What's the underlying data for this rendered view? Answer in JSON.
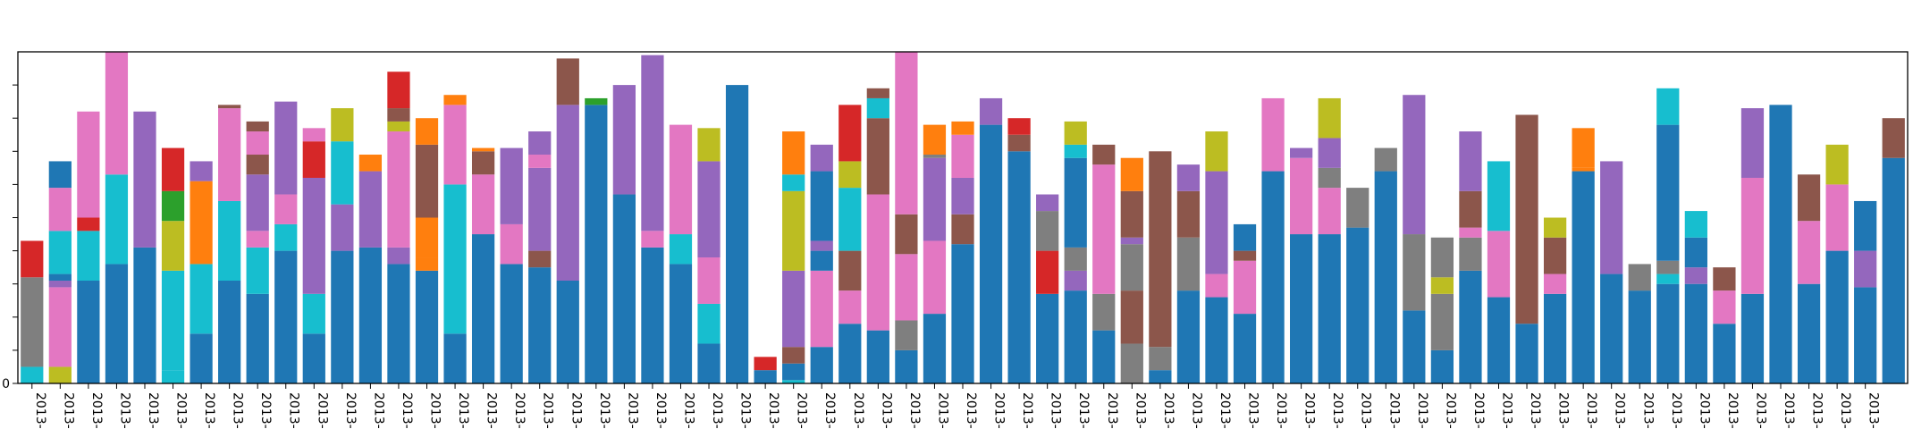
{
  "chart_data": {
    "type": "bar",
    "stacked": true,
    "grid": false,
    "legend": "none",
    "ylim": [
      0,
      1
    ],
    "yticks": [
      0,
      0.1,
      0.2,
      0.3,
      0.4,
      0.5,
      0.6,
      0.7,
      0.8,
      0.9
    ],
    "ytick_labels": [
      "0",
      "",
      "",
      "",
      "",
      "",
      "",
      "",
      "",
      ""
    ],
    "categories": [
      "2013-",
      "2013-",
      "2013-",
      "2013-",
      "2013-",
      "2013-",
      "2013-",
      "2013-",
      "2013-",
      "2013-",
      "2013-",
      "2013-",
      "2013-",
      "2013-",
      "2013-",
      "2013-",
      "2013-",
      "2013-",
      "2013-",
      "2013-",
      "2013-",
      "2013-",
      "2013-",
      "2013-",
      "2013-",
      "2013-",
      "2013-",
      "2013-",
      "2013-",
      "2013-",
      "2013-",
      "2013-",
      "2013-",
      "2013-",
      "2013-",
      "2013-",
      "2013-",
      "2013-",
      "2013-",
      "2013-",
      "2013-",
      "2013-",
      "2013-",
      "2013-",
      "2013-",
      "2013-",
      "2013-",
      "2013-",
      "2013-",
      "2013-",
      "2013-",
      "2013-",
      "2013-",
      "2013-",
      "2013-",
      "2013-",
      "2013-",
      "2013-",
      "2013-",
      "2013-",
      "2013-",
      "2013-",
      "2013-",
      "2013-",
      "2013-",
      "2013-"
    ],
    "colors": {
      "blue": "#1f77b4",
      "orange": "#ff7f0e",
      "green": "#2ca02c",
      "red": "#d62728",
      "purple": "#9467bd",
      "brown": "#8c564b",
      "pink": "#e377c2",
      "gray": "#7f7f7f",
      "olive": "#bcbd22",
      "cyan": "#17becf"
    },
    "bars": [
      [
        [
          "cyan",
          0.05
        ],
        [
          "gray",
          0.27
        ],
        [
          "red",
          0.11
        ]
      ],
      [
        [
          "olive",
          0.05
        ],
        [
          "pink",
          0.24
        ],
        [
          "purple",
          0.02
        ],
        [
          "blue",
          0.02
        ],
        [
          "cyan",
          0.13
        ],
        [
          "pink",
          0.13
        ],
        [
          "blue",
          0.08
        ]
      ],
      [
        [
          "blue",
          0.31
        ],
        [
          "cyan",
          0.15
        ],
        [
          "red",
          0.04
        ],
        [
          "pink",
          0.32
        ]
      ],
      [
        [
          "blue",
          0.36
        ],
        [
          "cyan",
          0.27
        ],
        [
          "pink",
          0.37
        ]
      ],
      [
        [
          "blue",
          0.41
        ],
        [
          "purple",
          0.41
        ]
      ],
      [
        [
          "cyan",
          0.04
        ],
        [
          "cyan",
          0.3
        ],
        [
          "olive",
          0.15
        ],
        [
          "green",
          0.09
        ],
        [
          "red",
          0.13
        ]
      ],
      [
        [
          "blue",
          0.15
        ],
        [
          "cyan",
          0.21
        ],
        [
          "orange",
          0.25
        ],
        [
          "purple",
          0.06
        ]
      ],
      [
        [
          "blue",
          0.31
        ],
        [
          "cyan",
          0.24
        ],
        [
          "pink",
          0.28
        ],
        [
          "brown",
          0.01
        ]
      ],
      [
        [
          "blue",
          0.27
        ],
        [
          "cyan",
          0.14
        ],
        [
          "pink",
          0.05
        ],
        [
          "purple",
          0.17
        ],
        [
          "brown",
          0.06
        ],
        [
          "pink",
          0.07
        ],
        [
          "brown",
          0.03
        ]
      ],
      [
        [
          "blue",
          0.4
        ],
        [
          "cyan",
          0.08
        ],
        [
          "pink",
          0.09
        ],
        [
          "purple",
          0.28
        ]
      ],
      [
        [
          "blue",
          0.15
        ],
        [
          "cyan",
          0.12
        ],
        [
          "purple",
          0.35
        ],
        [
          "red",
          0.11
        ],
        [
          "pink",
          0.04
        ]
      ],
      [
        [
          "blue",
          0.4
        ],
        [
          "purple",
          0.14
        ],
        [
          "cyan",
          0.19
        ],
        [
          "olive",
          0.1
        ]
      ],
      [
        [
          "blue",
          0.41
        ],
        [
          "purple",
          0.23
        ],
        [
          "orange",
          0.05
        ]
      ],
      [
        [
          "blue",
          0.36
        ],
        [
          "purple",
          0.05
        ],
        [
          "pink",
          0.35
        ],
        [
          "olive",
          0.03
        ],
        [
          "brown",
          0.04
        ],
        [
          "red",
          0.11
        ]
      ],
      [
        [
          "blue",
          0.34
        ],
        [
          "orange",
          0.04
        ],
        [
          "orange",
          0.12
        ],
        [
          "brown",
          0.22
        ],
        [
          "orange",
          0.08
        ]
      ],
      [
        [
          "blue",
          0.15
        ],
        [
          "cyan",
          0.45
        ],
        [
          "pink",
          0.24
        ],
        [
          "orange",
          0.03
        ]
      ],
      [
        [
          "blue",
          0.45
        ],
        [
          "pink",
          0.18
        ],
        [
          "brown",
          0.07
        ],
        [
          "orange",
          0.01
        ]
      ],
      [
        [
          "blue",
          0.36
        ],
        [
          "pink",
          0.12
        ],
        [
          "purple",
          0.23
        ]
      ],
      [
        [
          "blue",
          0.35
        ],
        [
          "brown",
          0.05
        ],
        [
          "purple",
          0.25
        ],
        [
          "pink",
          0.04
        ],
        [
          "purple",
          0.07
        ]
      ],
      [
        [
          "blue",
          0.31
        ],
        [
          "purple",
          0.53
        ],
        [
          "brown",
          0.14
        ]
      ],
      [
        [
          "blue",
          0.84
        ],
        [
          "green",
          0.02
        ]
      ],
      [
        [
          "blue",
          0.57
        ],
        [
          "purple",
          0.33
        ]
      ],
      [
        [
          "blue",
          0.41
        ],
        [
          "pink",
          0.05
        ],
        [
          "purple",
          0.53
        ]
      ],
      [
        [
          "blue",
          0.36
        ],
        [
          "cyan",
          0.09
        ],
        [
          "pink",
          0.33
        ]
      ],
      [
        [
          "blue",
          0.12
        ],
        [
          "cyan",
          0.12
        ],
        [
          "pink",
          0.14
        ],
        [
          "purple",
          0.29
        ],
        [
          "olive",
          0.1
        ]
      ],
      [
        [
          "blue",
          0.9
        ]
      ],
      [
        [
          "blue",
          0.04
        ],
        [
          "red",
          0.04
        ]
      ],
      [
        [
          "cyan",
          0.01
        ],
        [
          "blue",
          0.05
        ],
        [
          "brown",
          0.05
        ],
        [
          "purple",
          0.23
        ],
        [
          "olive",
          0.24
        ],
        [
          "cyan",
          0.05
        ],
        [
          "orange",
          0.13
        ]
      ],
      [
        [
          "blue",
          0.11
        ],
        [
          "pink",
          0.23
        ],
        [
          "blue",
          0.06
        ],
        [
          "purple",
          0.03
        ],
        [
          "blue",
          0.21
        ],
        [
          "purple",
          0.08
        ]
      ],
      [
        [
          "blue",
          0.18
        ],
        [
          "pink",
          0.1
        ],
        [
          "brown",
          0.12
        ],
        [
          "cyan",
          0.19
        ],
        [
          "olive",
          0.08
        ],
        [
          "red",
          0.17
        ]
      ],
      [
        [
          "blue",
          0.16
        ],
        [
          "pink",
          0.41
        ],
        [
          "brown",
          0.23
        ],
        [
          "cyan",
          0.06
        ],
        [
          "brown",
          0.03
        ]
      ],
      [
        [
          "blue",
          0.1
        ],
        [
          "gray",
          0.09
        ],
        [
          "pink",
          0.2
        ],
        [
          "brown",
          0.12
        ],
        [
          "pink",
          0.49
        ]
      ],
      [
        [
          "blue",
          0.21
        ],
        [
          "pink",
          0.22
        ],
        [
          "purple",
          0.25
        ],
        [
          "gray",
          0.01
        ],
        [
          "orange",
          0.09
        ]
      ],
      [
        [
          "blue",
          0.42
        ],
        [
          "brown",
          0.09
        ],
        [
          "purple",
          0.11
        ],
        [
          "pink",
          0.13
        ],
        [
          "orange",
          0.04
        ]
      ],
      [
        [
          "blue",
          0.78
        ],
        [
          "purple",
          0.08
        ]
      ],
      [
        [
          "blue",
          0.7
        ],
        [
          "brown",
          0.05
        ],
        [
          "red",
          0.05
        ]
      ],
      [
        [
          "blue",
          0.27
        ],
        [
          "red",
          0.13
        ],
        [
          "gray",
          0.12
        ],
        [
          "purple",
          0.05
        ]
      ],
      [
        [
          "blue",
          0.28
        ],
        [
          "purple",
          0.06
        ],
        [
          "gray",
          0.07
        ],
        [
          "blue",
          0.27
        ],
        [
          "cyan",
          0.04
        ],
        [
          "olive",
          0.07
        ]
      ],
      [
        [
          "blue",
          0.16
        ],
        [
          "gray",
          0.11
        ],
        [
          "pink",
          0.39
        ],
        [
          "brown",
          0.06
        ]
      ],
      [
        [
          "gray",
          0.12
        ],
        [
          "brown",
          0.16
        ],
        [
          "gray",
          0.14
        ],
        [
          "purple",
          0.02
        ],
        [
          "brown",
          0.14
        ],
        [
          "orange",
          0.1
        ]
      ],
      [
        [
          "blue",
          0.04
        ],
        [
          "gray",
          0.07
        ],
        [
          "brown",
          0.59
        ]
      ],
      [
        [
          "blue",
          0.28
        ],
        [
          "gray",
          0.16
        ],
        [
          "brown",
          0.14
        ],
        [
          "purple",
          0.08
        ]
      ],
      [
        [
          "blue",
          0.26
        ],
        [
          "pink",
          0.07
        ],
        [
          "purple",
          0.31
        ],
        [
          "olive",
          0.12
        ]
      ],
      [
        [
          "blue",
          0.21
        ],
        [
          "pink",
          0.16
        ],
        [
          "brown",
          0.03
        ],
        [
          "blue",
          0.08
        ]
      ],
      [
        [
          "blue",
          0.64
        ],
        [
          "pink",
          0.22
        ]
      ],
      [
        [
          "blue",
          0.45
        ],
        [
          "pink",
          0.23
        ],
        [
          "purple",
          0.03
        ]
      ],
      [
        [
          "blue",
          0.45
        ],
        [
          "pink",
          0.14
        ],
        [
          "gray",
          0.06
        ],
        [
          "purple",
          0.09
        ],
        [
          "olive",
          0.12
        ]
      ],
      [
        [
          "blue",
          0.47
        ],
        [
          "gray",
          0.12
        ]
      ],
      [
        [
          "blue",
          0.64
        ],
        [
          "gray",
          0.07
        ]
      ],
      [
        [
          "blue",
          0.22
        ],
        [
          "gray",
          0.23
        ],
        [
          "purple",
          0.42
        ]
      ],
      [
        [
          "blue",
          0.1
        ],
        [
          "gray",
          0.17
        ],
        [
          "olive",
          0.05
        ],
        [
          "gray",
          0.12
        ]
      ],
      [
        [
          "blue",
          0.34
        ],
        [
          "gray",
          0.1
        ],
        [
          "pink",
          0.03
        ],
        [
          "brown",
          0.11
        ],
        [
          "purple",
          0.18
        ]
      ],
      [
        [
          "blue",
          0.26
        ],
        [
          "pink",
          0.2
        ],
        [
          "cyan",
          0.21
        ]
      ],
      [
        [
          "blue",
          0.18
        ],
        [
          "brown",
          0.63
        ]
      ],
      [
        [
          "blue",
          0.27
        ],
        [
          "pink",
          0.06
        ],
        [
          "brown",
          0.11
        ],
        [
          "olive",
          0.06
        ]
      ],
      [
        [
          "blue",
          0.64
        ],
        [
          "orange",
          0.01
        ],
        [
          "orange",
          0.12
        ]
      ],
      [
        [
          "blue",
          0.33
        ],
        [
          "purple",
          0.34
        ]
      ],
      [
        [
          "blue",
          0.28
        ],
        [
          "gray",
          0.08
        ]
      ],
      [
        [
          "blue",
          0.3
        ],
        [
          "cyan",
          0.03
        ],
        [
          "gray",
          0.04
        ],
        [
          "blue",
          0.41
        ],
        [
          "cyan",
          0.11
        ]
      ],
      [
        [
          "blue",
          0.3
        ],
        [
          "purple",
          0.05
        ],
        [
          "blue",
          0.09
        ],
        [
          "cyan",
          0.08
        ]
      ],
      [
        [
          "blue",
          0.18
        ],
        [
          "pink",
          0.1
        ],
        [
          "brown",
          0.07
        ]
      ],
      [
        [
          "blue",
          0.27
        ],
        [
          "pink",
          0.35
        ],
        [
          "purple",
          0.21
        ]
      ],
      [
        [
          "blue",
          0.84
        ]
      ],
      [
        [
          "blue",
          0.3
        ],
        [
          "pink",
          0.19
        ],
        [
          "brown",
          0.14
        ]
      ],
      [
        [
          "blue",
          0.4
        ],
        [
          "pink",
          0.2
        ],
        [
          "olive",
          0.12
        ]
      ],
      [
        [
          "blue",
          0.29
        ],
        [
          "purple",
          0.11
        ],
        [
          "blue",
          0.15
        ]
      ],
      [
        [
          "blue",
          0.68
        ],
        [
          "brown",
          0.12
        ]
      ]
    ]
  }
}
